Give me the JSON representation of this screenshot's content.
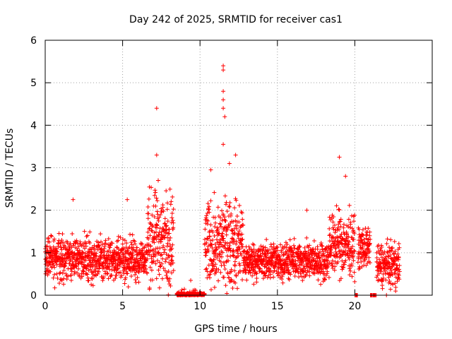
{
  "chart_data": {
    "type": "scatter",
    "title": "Day 242 of 2025, SRMTID for receiver cas1",
    "xlabel": "GPS time / hours",
    "ylabel": "SRMTID / TECUs",
    "xlim": [
      0,
      25
    ],
    "ylim": [
      0,
      6
    ],
    "xticks": [
      0,
      5,
      10,
      15,
      20
    ],
    "yticks": [
      0,
      1,
      2,
      3,
      4,
      5,
      6
    ],
    "grid": true,
    "marker": "+",
    "series_color": "#ff0000",
    "series": [
      {
        "name": "SRMTID",
        "segments": [
          {
            "x_start": 0.0,
            "x_end": 6.6,
            "mean": 0.85,
            "spread": 0.35
          },
          {
            "x_start": 6.6,
            "x_end": 8.3,
            "mean": 1.3,
            "spread": 0.75
          },
          {
            "x_start": 8.5,
            "x_end": 10.3,
            "mean": 0.02,
            "spread": 0.02
          },
          {
            "x_start": 10.3,
            "x_end": 12.8,
            "mean": 1.2,
            "spread": 0.7
          },
          {
            "x_start": 12.8,
            "x_end": 18.3,
            "mean": 0.8,
            "spread": 0.3
          },
          {
            "x_start": 18.3,
            "x_end": 20.0,
            "mean": 1.2,
            "spread": 0.5
          },
          {
            "x_start": 20.0,
            "x_end": 20.2,
            "mean": 0.0,
            "spread": 0.0
          },
          {
            "x_start": 20.2,
            "x_end": 21.0,
            "mean": 1.1,
            "spread": 0.3
          },
          {
            "x_start": 21.0,
            "x_end": 21.4,
            "mean": 0.0,
            "spread": 0.0
          },
          {
            "x_start": 21.4,
            "x_end": 22.9,
            "mean": 0.7,
            "spread": 0.35
          }
        ],
        "outliers": [
          {
            "x": 7.2,
            "y": 4.4
          },
          {
            "x": 7.2,
            "y": 3.3
          },
          {
            "x": 7.3,
            "y": 2.7
          },
          {
            "x": 9.4,
            "y": 0.35
          },
          {
            "x": 11.5,
            "y": 5.4
          },
          {
            "x": 11.5,
            "y": 5.3
          },
          {
            "x": 11.5,
            "y": 4.8
          },
          {
            "x": 11.5,
            "y": 4.6
          },
          {
            "x": 11.5,
            "y": 4.4
          },
          {
            "x": 11.6,
            "y": 4.2
          },
          {
            "x": 11.5,
            "y": 3.55
          },
          {
            "x": 12.3,
            "y": 3.3
          },
          {
            "x": 11.9,
            "y": 3.1
          },
          {
            "x": 10.7,
            "y": 2.95
          },
          {
            "x": 19.0,
            "y": 3.25
          },
          {
            "x": 19.4,
            "y": 2.8
          },
          {
            "x": 5.3,
            "y": 2.25
          },
          {
            "x": 1.8,
            "y": 2.25
          },
          {
            "x": 16.9,
            "y": 2.0
          }
        ]
      }
    ]
  }
}
